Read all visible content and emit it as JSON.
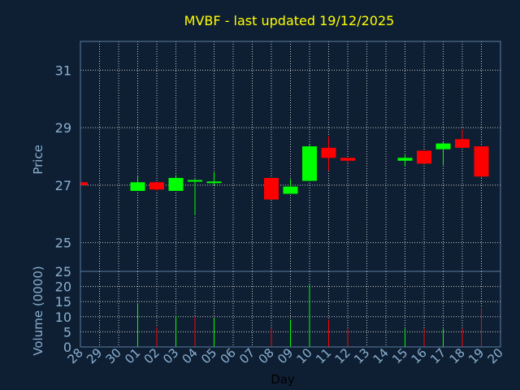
{
  "chart_data": {
    "type": "candlestick",
    "title": "MVBF - last updated 19/12/2025",
    "xlabel": "Day",
    "x_ticks": [
      "28",
      "29",
      "30",
      "01",
      "02",
      "03",
      "04",
      "05",
      "06",
      "07",
      "08",
      "09",
      "10",
      "11",
      "12",
      "13",
      "14",
      "15",
      "16",
      "17",
      "18",
      "19",
      "20"
    ],
    "price": {
      "ylabel": "Price",
      "ylim": [
        24.0,
        32.0
      ],
      "y_ticks": [
        25,
        27,
        29,
        31
      ],
      "candles": [
        {
          "x": "28",
          "open": 27.1,
          "high": 27.1,
          "low": 27.0,
          "close": 27.0
        },
        {
          "x": "01",
          "open": 26.8,
          "high": 27.3,
          "low": 26.8,
          "close": 27.1
        },
        {
          "x": "02",
          "open": 27.1,
          "high": 27.1,
          "low": 26.8,
          "close": 26.85
        },
        {
          "x": "03",
          "open": 26.8,
          "high": 27.35,
          "low": 26.8,
          "close": 27.25
        },
        {
          "x": "04",
          "open": 27.15,
          "high": 27.2,
          "low": 25.95,
          "close": 27.15
        },
        {
          "x": "05",
          "open": 27.05,
          "high": 27.45,
          "low": 27.0,
          "close": 27.1
        },
        {
          "x": "08",
          "open": 27.25,
          "high": 27.25,
          "low": 26.5,
          "close": 26.5
        },
        {
          "x": "09",
          "open": 26.7,
          "high": 27.2,
          "low": 26.7,
          "close": 26.95
        },
        {
          "x": "10",
          "open": 27.15,
          "high": 28.4,
          "low": 27.15,
          "close": 28.35
        },
        {
          "x": "11",
          "open": 28.3,
          "high": 28.7,
          "low": 27.5,
          "close": 27.95
        },
        {
          "x": "12",
          "open": 27.95,
          "high": 27.95,
          "low": 27.75,
          "close": 27.85
        },
        {
          "x": "15",
          "open": 27.85,
          "high": 28.05,
          "low": 27.65,
          "close": 27.95
        },
        {
          "x": "16",
          "open": 28.2,
          "high": 28.2,
          "low": 27.75,
          "close": 27.75
        },
        {
          "x": "17",
          "open": 28.25,
          "high": 28.5,
          "low": 27.7,
          "close": 28.45
        },
        {
          "x": "18",
          "open": 28.6,
          "high": 28.95,
          "low": 28.3,
          "close": 28.3
        },
        {
          "x": "19",
          "open": 28.35,
          "high": 28.35,
          "low": 27.25,
          "close": 27.3
        }
      ]
    },
    "volume": {
      "ylabel": "Volume (0000)",
      "ylim": [
        0,
        25
      ],
      "y_ticks": [
        0,
        5,
        10,
        15,
        20,
        25
      ],
      "bars": [
        {
          "x": "01",
          "value": 14.5,
          "up": true
        },
        {
          "x": "02",
          "value": 6.5,
          "up": false
        },
        {
          "x": "03",
          "value": 10.5,
          "up": true
        },
        {
          "x": "04",
          "value": 10.0,
          "up": false
        },
        {
          "x": "05",
          "value": 9.5,
          "up": true
        },
        {
          "x": "08",
          "value": 6.0,
          "up": false
        },
        {
          "x": "09",
          "value": 9.0,
          "up": true
        },
        {
          "x": "10",
          "value": 20.5,
          "up": true
        },
        {
          "x": "11",
          "value": 9.0,
          "up": false
        },
        {
          "x": "12",
          "value": 6.0,
          "up": false
        },
        {
          "x": "15",
          "value": 6.0,
          "up": true
        },
        {
          "x": "16",
          "value": 6.0,
          "up": false
        },
        {
          "x": "17",
          "value": 6.0,
          "up": true
        },
        {
          "x": "18",
          "value": 6.0,
          "up": false
        },
        {
          "x": "19",
          "value": 13.0,
          "up": false
        }
      ]
    },
    "colors": {
      "up": "#00ff00",
      "down": "#ff0000",
      "grid": "#c8c8c8",
      "axis": "#5a7da0",
      "text": "#8ab0d0",
      "title": "#ffff00",
      "background": "#0f1f33"
    },
    "grid": true
  }
}
